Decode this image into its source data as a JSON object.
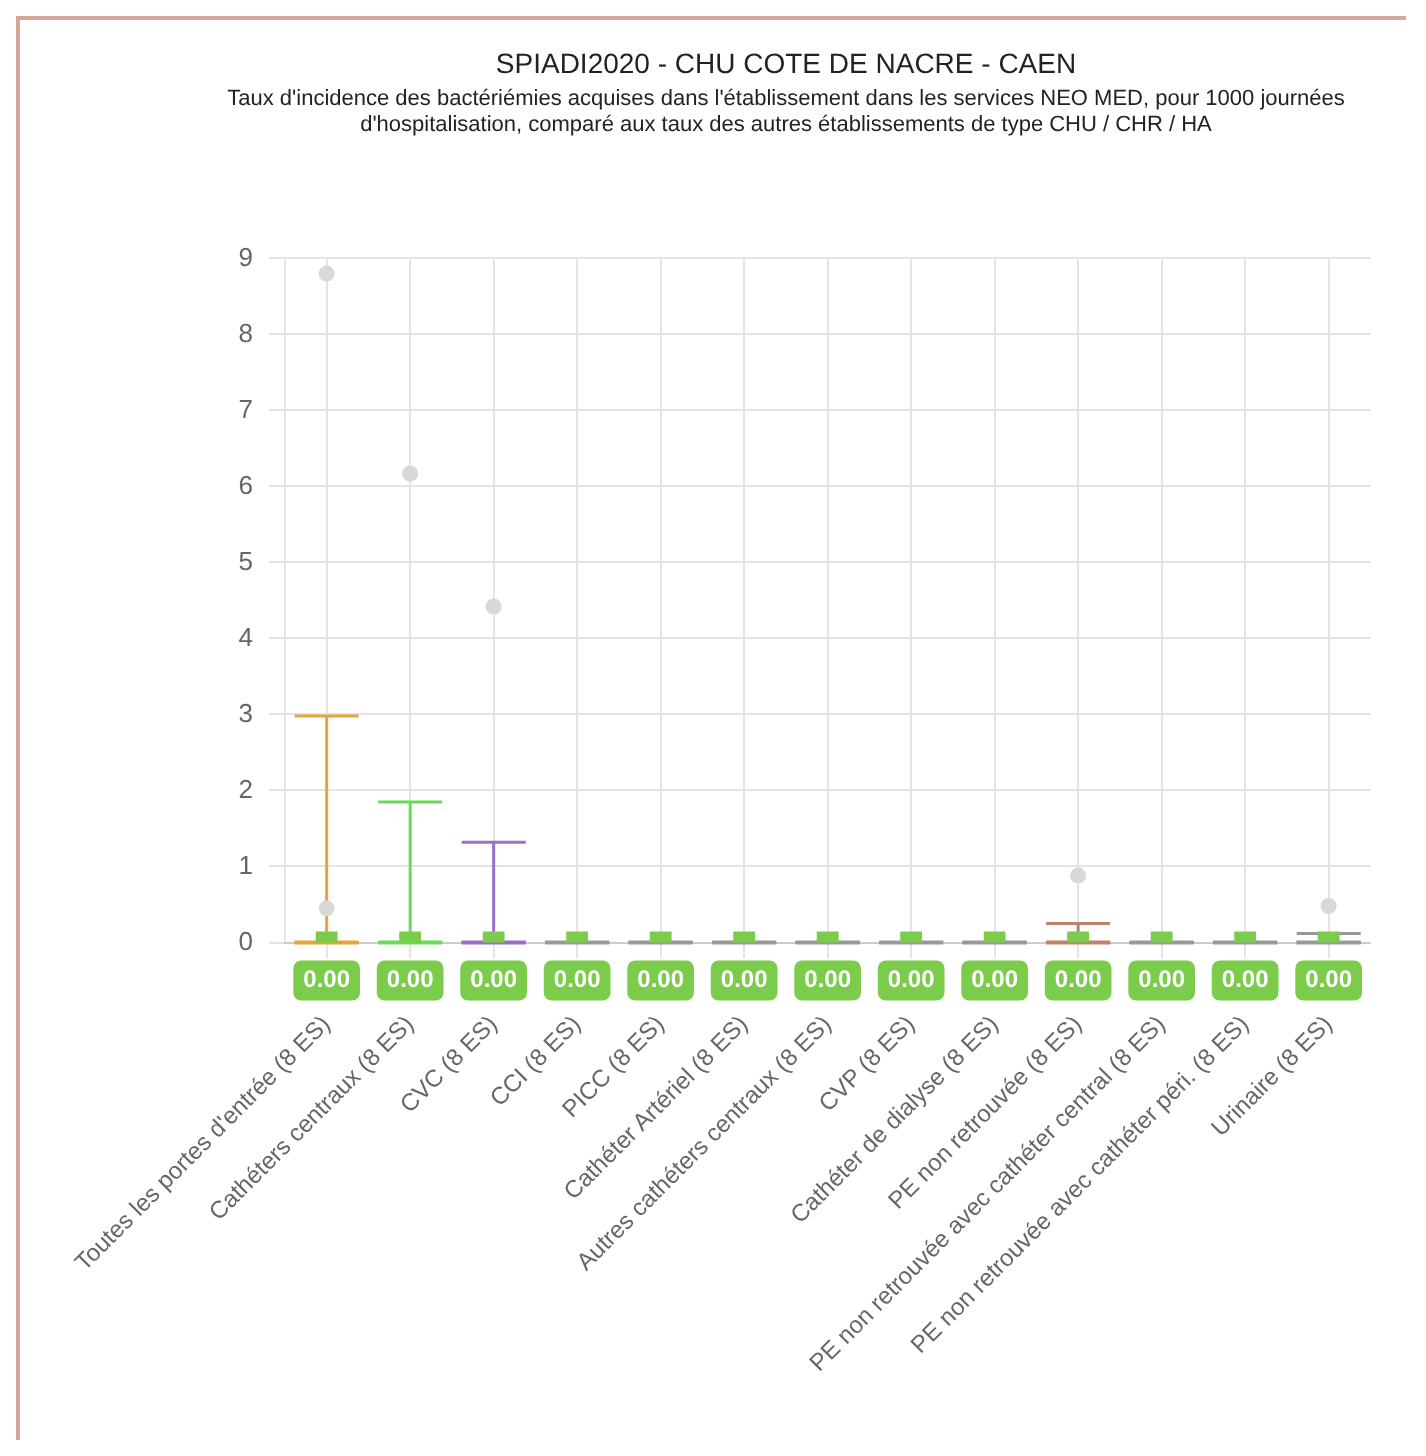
{
  "chart_data": {
    "type": "box",
    "title": "SPIADI2020 - CHU COTE DE NACRE - CAEN",
    "subtitle": "Taux d'incidence des bactériémies acquises dans l'établissement dans les services NEO MED, pour 1000 journées d'hospitalisation, comparé aux taux des autres établissements de type CHU / CHR / HA",
    "categories": [
      "Toutes les portes d'entrée (8 ES)",
      "Cathéters centraux (8 ES)",
      "CVC (8 ES)",
      "CCI (8 ES)",
      "PICC (8 ES)",
      "Cathéter Artériel (8 ES)",
      "Autres cathéters centraux (8 ES)",
      "CVP (8 ES)",
      "Cathéter de dialyse (8 ES)",
      "PE non retrouvée (8 ES)",
      "PE non retrouvée avec cathéter central (8 ES)",
      "PE non retrouvée avec cathéter péri. (8 ES)",
      "Urinaire (8 ES)"
    ],
    "ylim": [
      0,
      9
    ],
    "yticks": [
      0,
      1,
      2,
      3,
      4,
      5,
      6,
      7,
      8,
      9
    ],
    "grid": true,
    "marker": "square",
    "series": [
      {
        "type": "box",
        "colors": [
          "#e8a33d",
          "#66dd55",
          "#9a70c8",
          "#999999",
          "#999999",
          "#999999",
          "#999999",
          "#999999",
          "#999999",
          "#c0806a",
          "#999999",
          "#999999",
          "#999999"
        ],
        "boxes": [
          {
            "low": 0,
            "q1": 0,
            "median": 0,
            "q3": 0,
            "high": 2.98,
            "outliers": [
              8.8,
              0.45
            ]
          },
          {
            "low": 0,
            "q1": 0,
            "median": 0,
            "q3": 0,
            "high": 1.85,
            "outliers": [
              6.17
            ]
          },
          {
            "low": 0,
            "q1": 0,
            "median": 0,
            "q3": 0,
            "high": 1.32,
            "outliers": [
              4.42
            ]
          },
          {
            "low": 0,
            "q1": 0,
            "median": 0,
            "q3": 0,
            "high": 0
          },
          {
            "low": 0,
            "q1": 0,
            "median": 0,
            "q3": 0,
            "high": 0
          },
          {
            "low": 0,
            "q1": 0,
            "median": 0,
            "q3": 0,
            "high": 0
          },
          {
            "low": 0,
            "q1": 0,
            "median": 0,
            "q3": 0,
            "high": 0
          },
          {
            "low": 0,
            "q1": 0,
            "median": 0,
            "q3": 0,
            "high": 0
          },
          {
            "low": 0,
            "q1": 0,
            "median": 0,
            "q3": 0,
            "high": 0
          },
          {
            "low": 0,
            "q1": 0,
            "median": 0,
            "q3": 0,
            "high": 0.25,
            "outliers": [
              0.88
            ]
          },
          {
            "low": 0,
            "q1": 0,
            "median": 0,
            "q3": 0,
            "high": 0
          },
          {
            "low": 0,
            "q1": 0,
            "median": 0,
            "q3": 0,
            "high": 0
          },
          {
            "low": 0,
            "q1": 0,
            "median": 0,
            "q3": 0,
            "high": 0.12,
            "outliers": [
              0.48
            ]
          }
        ]
      },
      {
        "type": "scatter",
        "color": "#7acc4a",
        "values": [
          0,
          0,
          0,
          0,
          0,
          0,
          0,
          0,
          0,
          0,
          0,
          0,
          0
        ],
        "value_labels": [
          "0.00",
          "0.00",
          "0.00",
          "0.00",
          "0.00",
          "0.00",
          "0.00",
          "0.00",
          "0.00",
          "0.00",
          "0.00",
          "0.00",
          "0.00"
        ]
      }
    ]
  }
}
